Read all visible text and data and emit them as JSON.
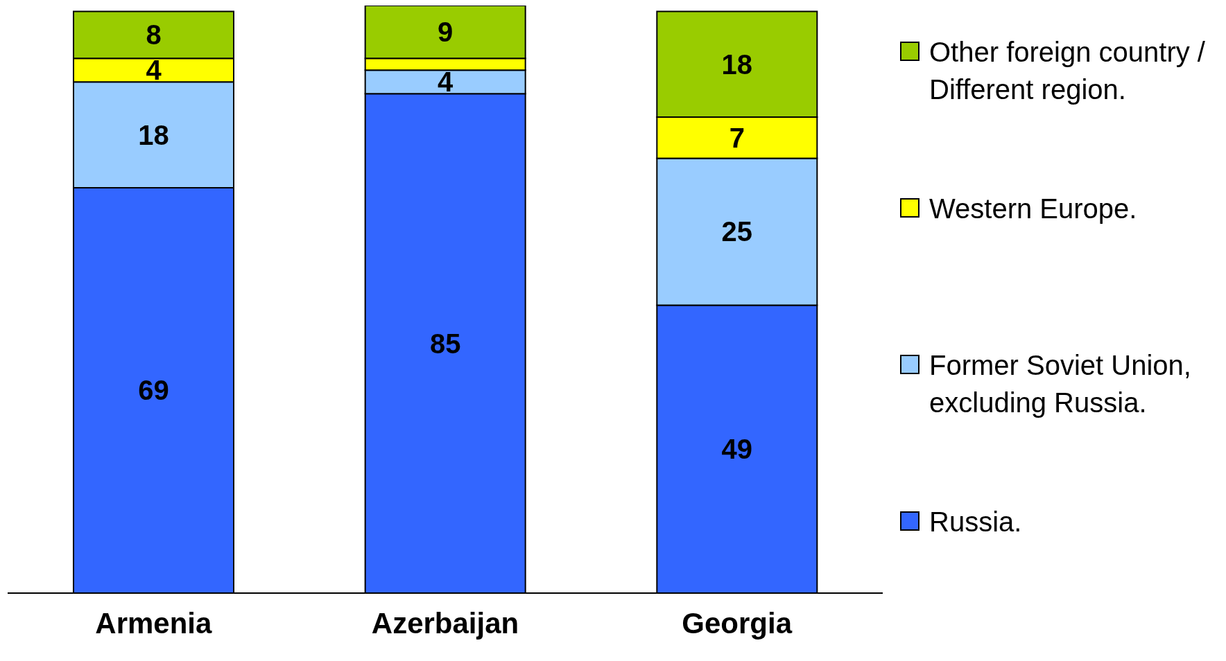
{
  "chart_data": {
    "type": "bar",
    "stacked": true,
    "categories": [
      "Armenia",
      "Azerbaijan",
      "Georgia"
    ],
    "ylim": [
      0,
      100
    ],
    "tick_labels": "x",
    "legend": "right",
    "series": [
      {
        "name": "Russia.",
        "color": "#3366ff",
        "values": [
          69,
          85,
          49
        ],
        "value_labels": [
          "69",
          "85",
          "49"
        ]
      },
      {
        "name": "Former Soviet Union, excluding Russia.",
        "color": "#99ccff",
        "values": [
          18,
          4,
          25
        ],
        "value_labels": [
          "18",
          "4",
          "25"
        ]
      },
      {
        "name": "Western Europe.",
        "color": "#ffff00",
        "values": [
          4,
          2,
          7
        ],
        "value_labels": [
          "4",
          null,
          "7"
        ]
      },
      {
        "name": "Other foreign country / Different region.",
        "color": "#99cc00",
        "values": [
          8,
          9,
          18
        ],
        "value_labels": [
          "8",
          "9",
          "18"
        ]
      }
    ]
  }
}
